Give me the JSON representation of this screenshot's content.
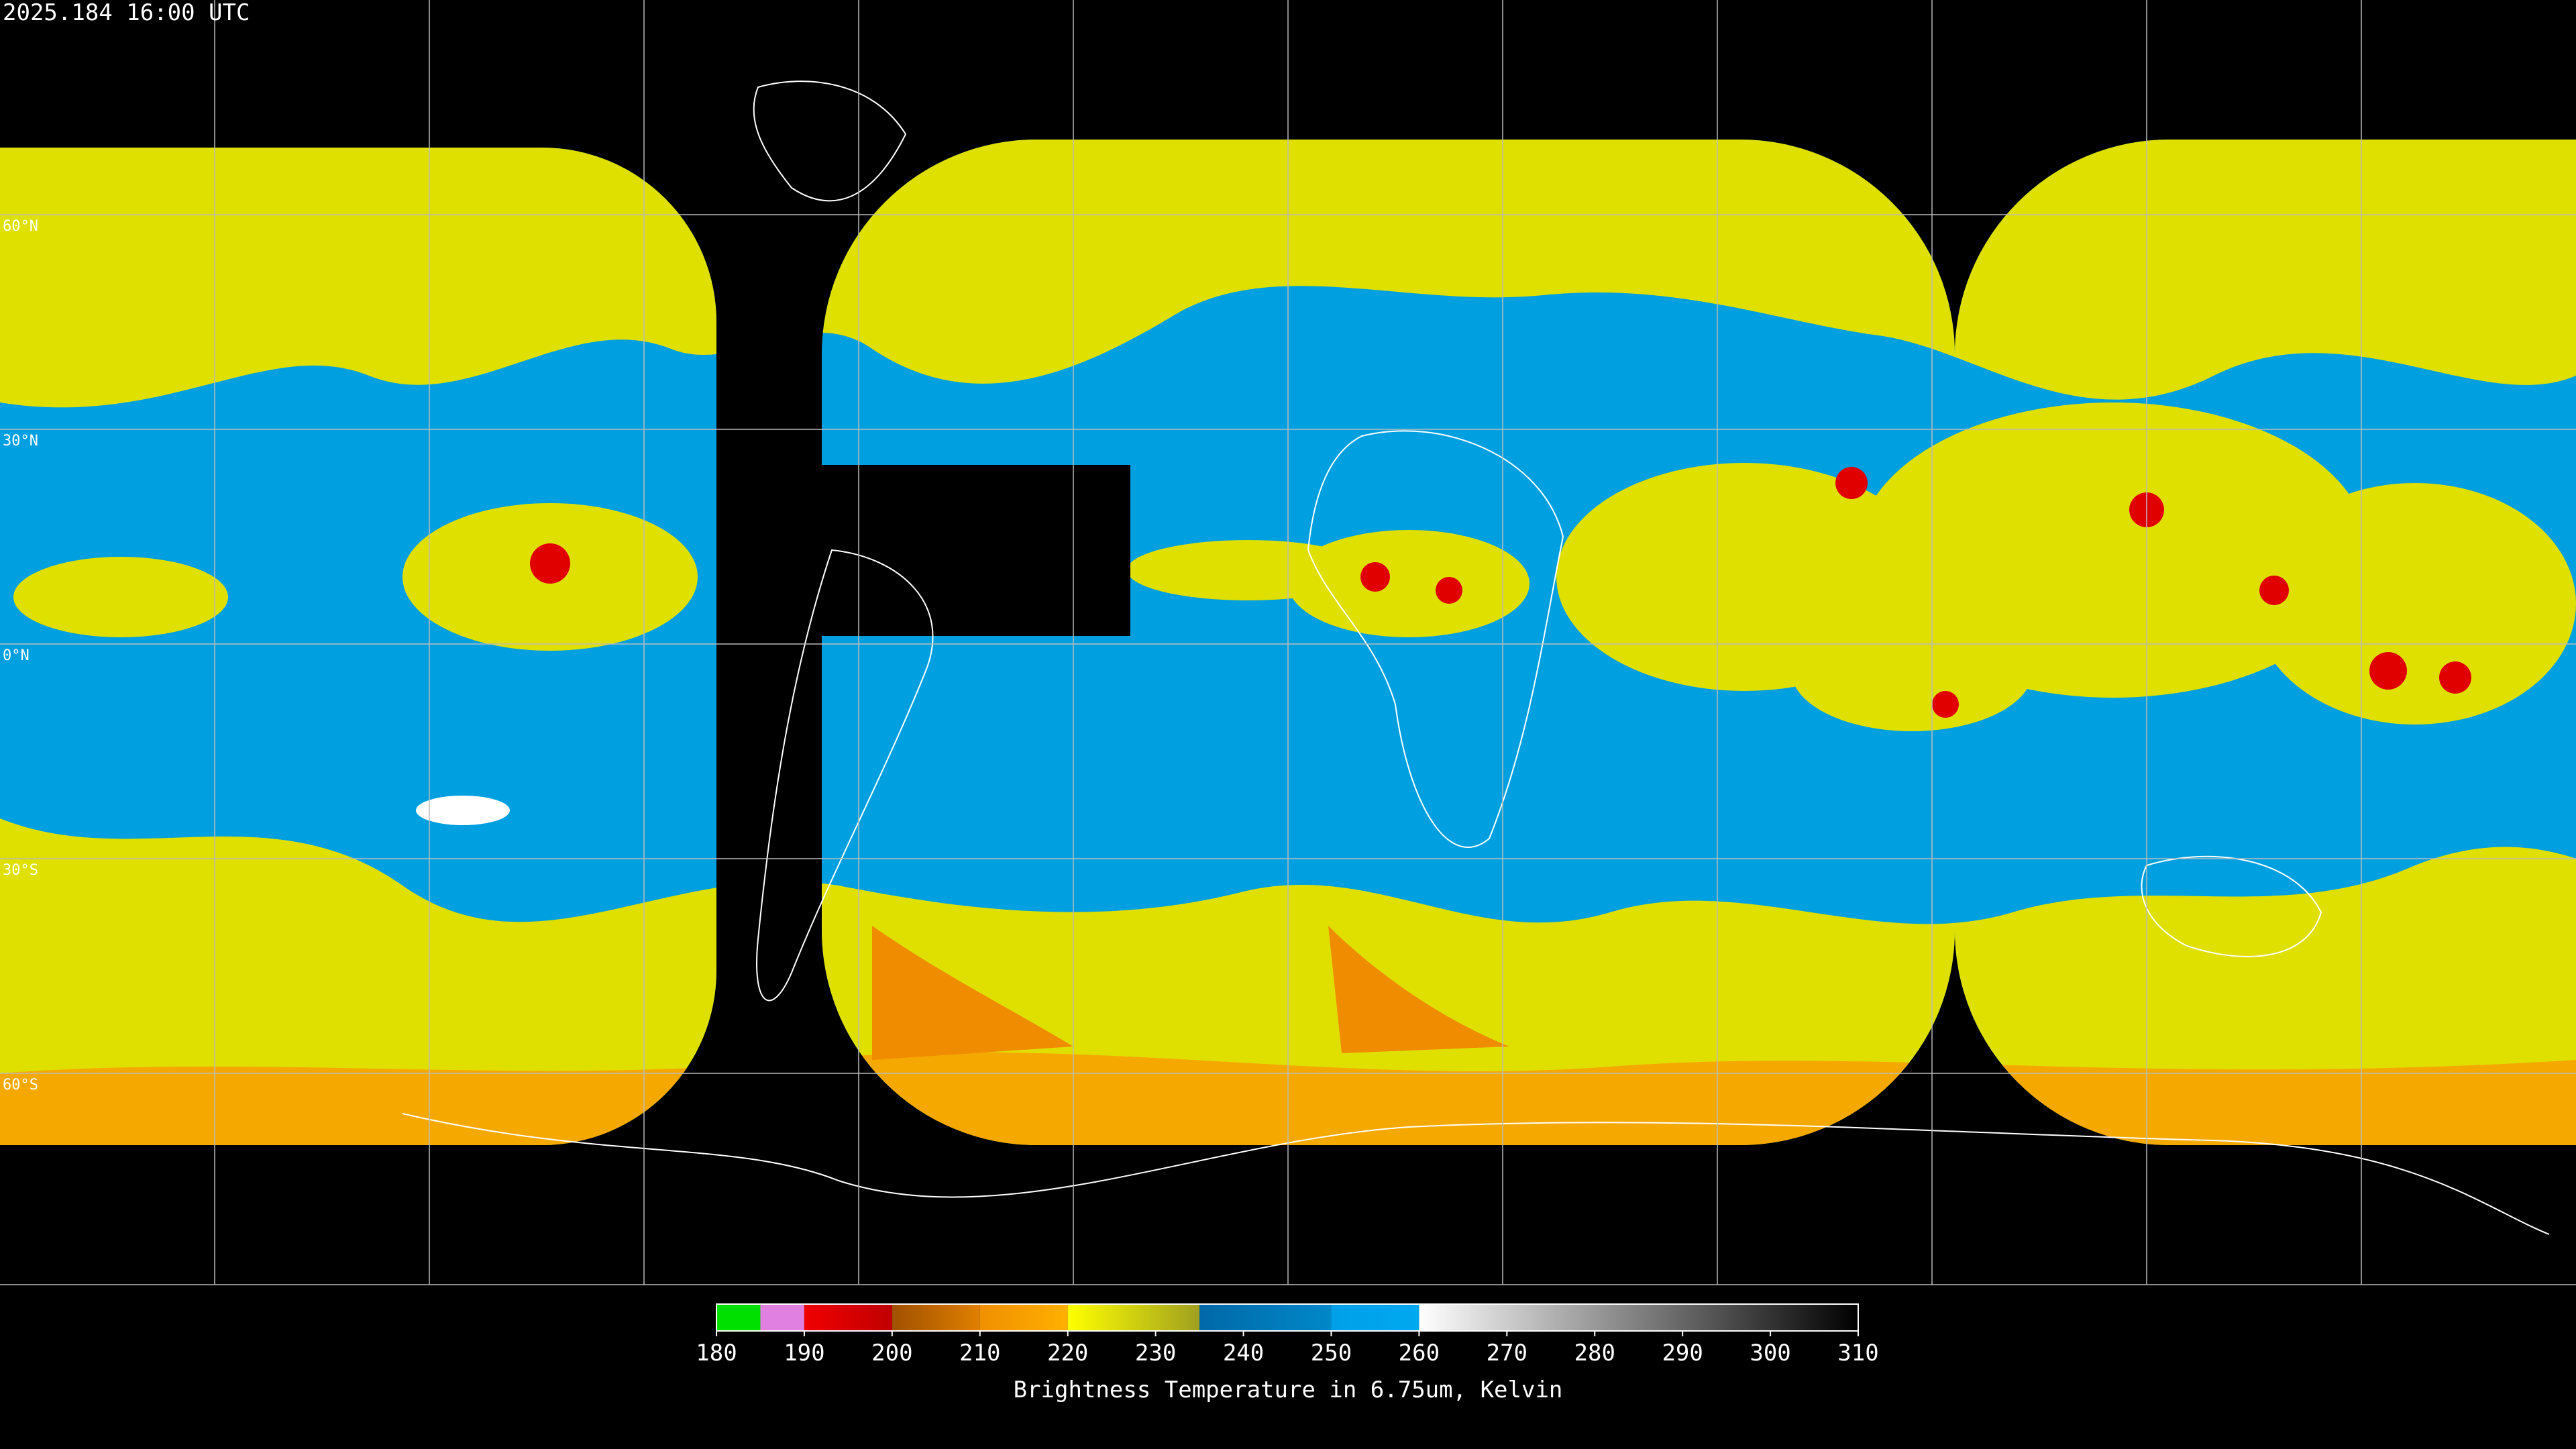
{
  "timestamp": "2025.184 16:00 UTC",
  "lat_labels": [
    {
      "value": 60,
      "label": "60°N"
    },
    {
      "value": 30,
      "label": "30°N"
    },
    {
      "value": 0,
      "label": "0°N"
    },
    {
      "value": -30,
      "label": "30°S"
    },
    {
      "value": -60,
      "label": "60°S"
    }
  ],
  "colorbar": {
    "range": [
      180,
      310
    ],
    "ticks": [
      180,
      190,
      200,
      210,
      220,
      230,
      240,
      250,
      260,
      270,
      280,
      290,
      300,
      310
    ],
    "label": "Brightness Temperature in 6.75um, Kelvin",
    "segments": [
      {
        "from": 180,
        "to": 185,
        "colors": [
          "#00e000",
          "#00e000"
        ]
      },
      {
        "from": 185,
        "to": 190,
        "colors": [
          "#e080e0",
          "#e080e0"
        ]
      },
      {
        "from": 190,
        "to": 200,
        "colors": [
          "#f00000",
          "#c00000"
        ]
      },
      {
        "from": 200,
        "to": 210,
        "colors": [
          "#a05000",
          "#e08000"
        ]
      },
      {
        "from": 210,
        "to": 220,
        "colors": [
          "#f09000",
          "#ffb000"
        ]
      },
      {
        "from": 220,
        "to": 235,
        "colors": [
          "#ffff00",
          "#a0a020"
        ]
      },
      {
        "from": 235,
        "to": 250,
        "colors": [
          "#0068a8",
          "#0088c8"
        ]
      },
      {
        "from": 250,
        "to": 260,
        "colors": [
          "#00a0e8",
          "#00a8f0"
        ]
      },
      {
        "from": 260,
        "to": 310,
        "colors": [
          "#ffffff",
          "#000000"
        ]
      }
    ]
  }
}
